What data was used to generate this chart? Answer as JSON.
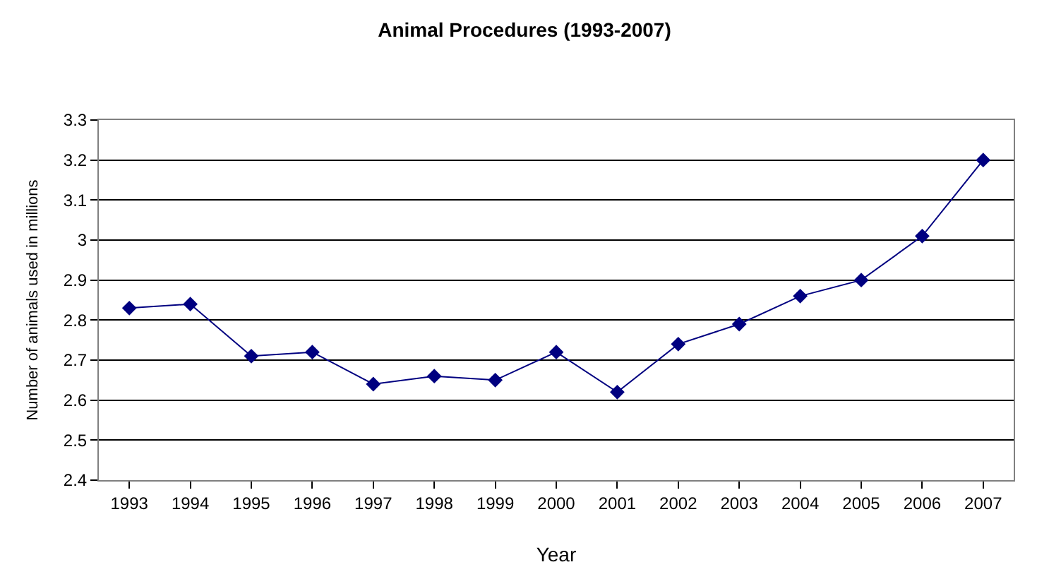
{
  "chart_data": {
    "type": "line",
    "title": "Animal Procedures (1993-2007)",
    "xlabel": "Year",
    "ylabel": "Number of animals used in millions",
    "categories": [
      "1993",
      "1994",
      "1995",
      "1996",
      "1997",
      "1998",
      "1999",
      "2000",
      "2001",
      "2002",
      "2003",
      "2004",
      "2005",
      "2006",
      "2007"
    ],
    "series": [
      {
        "color": "#000080",
        "values": [
          2.83,
          2.84,
          2.71,
          2.72,
          2.64,
          2.66,
          2.65,
          2.72,
          2.62,
          2.74,
          2.79,
          2.86,
          2.9,
          3.01,
          3.2
        ]
      }
    ],
    "ylim": [
      2.4,
      3.3
    ],
    "yticks": [
      2.4,
      2.5,
      2.6,
      2.7,
      2.8,
      2.9,
      3,
      3.1,
      3.2,
      3.3
    ],
    "grid": "y",
    "marker": "diamond",
    "line_style": "solid"
  }
}
